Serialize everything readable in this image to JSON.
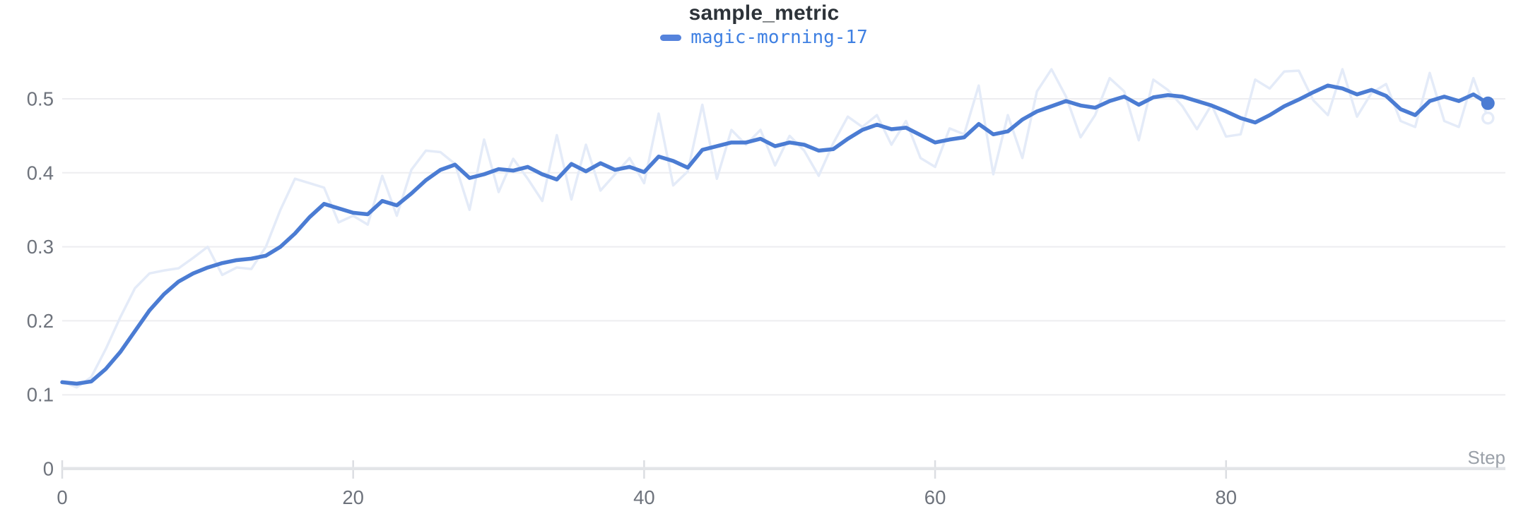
{
  "chart_data": {
    "type": "line",
    "title": "sample_metric",
    "xlabel": "Step",
    "ylabel": "",
    "x_tick_labels": [
      0,
      20,
      40,
      60,
      80
    ],
    "y_tick_labels": [
      0,
      0.1,
      0.2,
      0.3,
      0.4,
      0.5
    ],
    "xlim": [
      0,
      99.2
    ],
    "ylim": [
      0,
      0.55
    ],
    "grid": "horizontal",
    "legend_position": "top-center",
    "legend_entries": [
      "magic-morning-17"
    ],
    "steps": [
      0,
      1,
      2,
      3,
      4,
      5,
      6,
      7,
      8,
      9,
      10,
      11,
      12,
      13,
      14,
      15,
      16,
      17,
      18,
      19,
      20,
      21,
      22,
      23,
      24,
      25,
      26,
      27,
      28,
      29,
      30,
      31,
      32,
      33,
      34,
      35,
      36,
      37,
      38,
      39,
      40,
      41,
      42,
      43,
      44,
      45,
      46,
      47,
      48,
      49,
      50,
      51,
      52,
      53,
      54,
      55,
      56,
      57,
      58,
      59,
      60,
      61,
      62,
      63,
      64,
      65,
      66,
      67,
      68,
      69,
      70,
      71,
      72,
      73,
      74,
      75,
      76,
      77,
      78,
      79,
      80,
      81,
      82,
      83,
      84,
      85,
      86,
      87,
      88,
      89,
      90,
      91,
      92,
      93,
      94,
      95,
      96,
      97,
      98
    ],
    "series": [
      {
        "name": "magic-morning-17",
        "role": "smoothed",
        "values": [
          0.117,
          0.115,
          0.118,
          0.135,
          0.158,
          0.186,
          0.214,
          0.236,
          0.253,
          0.264,
          0.272,
          0.278,
          0.282,
          0.284,
          0.288,
          0.3,
          0.318,
          0.34,
          0.358,
          0.352,
          0.346,
          0.344,
          0.362,
          0.356,
          0.372,
          0.39,
          0.404,
          0.411,
          0.393,
          0.398,
          0.405,
          0.403,
          0.408,
          0.398,
          0.391,
          0.412,
          0.402,
          0.413,
          0.404,
          0.408,
          0.401,
          0.422,
          0.416,
          0.407,
          0.431,
          0.436,
          0.441,
          0.441,
          0.446,
          0.436,
          0.441,
          0.438,
          0.43,
          0.432,
          0.446,
          0.458,
          0.465,
          0.459,
          0.461,
          0.451,
          0.441,
          0.445,
          0.448,
          0.466,
          0.452,
          0.456,
          0.472,
          0.483,
          0.49,
          0.497,
          0.491,
          0.488,
          0.497,
          0.503,
          0.492,
          0.502,
          0.505,
          0.503,
          0.497,
          0.491,
          0.483,
          0.474,
          0.468,
          0.478,
          0.49,
          0.499,
          0.509,
          0.518,
          0.514,
          0.506,
          0.512,
          0.504,
          0.486,
          0.478,
          0.497,
          0.503,
          0.497,
          0.506,
          0.494
        ]
      },
      {
        "name": "magic-morning-17",
        "role": "raw-ghost",
        "values": [
          0.118,
          0.11,
          0.124,
          0.162,
          0.205,
          0.244,
          0.264,
          0.268,
          0.271,
          0.285,
          0.3,
          0.262,
          0.272,
          0.27,
          0.3,
          0.35,
          0.392,
          0.386,
          0.38,
          0.333,
          0.342,
          0.33,
          0.396,
          0.342,
          0.404,
          0.43,
          0.428,
          0.412,
          0.35,
          0.445,
          0.374,
          0.419,
          0.392,
          0.362,
          0.451,
          0.364,
          0.438,
          0.376,
          0.398,
          0.42,
          0.386,
          0.48,
          0.383,
          0.402,
          0.492,
          0.392,
          0.458,
          0.438,
          0.458,
          0.41,
          0.45,
          0.43,
          0.396,
          0.44,
          0.476,
          0.462,
          0.478,
          0.438,
          0.47,
          0.42,
          0.408,
          0.46,
          0.452,
          0.518,
          0.398,
          0.478,
          0.42,
          0.51,
          0.54,
          0.503,
          0.448,
          0.478,
          0.528,
          0.51,
          0.444,
          0.526,
          0.512,
          0.49,
          0.459,
          0.492,
          0.449,
          0.452,
          0.526,
          0.514,
          0.537,
          0.538,
          0.498,
          0.478,
          0.54,
          0.476,
          0.508,
          0.52,
          0.47,
          0.462,
          0.535,
          0.47,
          0.462,
          0.528,
          0.474
        ]
      }
    ],
    "end_markers": {
      "smoothed": "filled-dot",
      "raw-ghost": "hollow-dot"
    }
  },
  "colors": {
    "run_line": "#4b7cd3",
    "run_ghost": "#e4ebf8",
    "legend_text": "#3f80e2",
    "legend_swatch": "#5583dc",
    "title_text": "#2d3339",
    "tick_text": "#6e737c",
    "axis_label_text": "#9aa0a8",
    "gridline": "#ededf0",
    "axis_line": "#e3e5e8",
    "tick_mark": "#dcdee2",
    "background": "#ffffff"
  }
}
